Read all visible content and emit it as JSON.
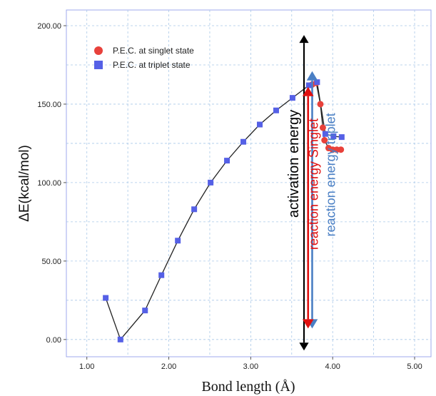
{
  "chart_data": {
    "type": "line",
    "title": "",
    "xlabel": "Bond length (Å)",
    "ylabel": "ΔE(kcal/mol)",
    "xlim": [
      0.75,
      5.2
    ],
    "ylim": [
      -11,
      210
    ],
    "x_ticks": [
      "1.00",
      "2.00",
      "3.00",
      "4.00",
      "5.00"
    ],
    "x_tick_values": [
      1,
      2,
      3,
      4,
      5
    ],
    "y_ticks": [
      "0.00",
      "50.00",
      "100.00",
      "150.00",
      "200.00"
    ],
    "y_tick_values": [
      0,
      50,
      100,
      150,
      200
    ],
    "grid": true,
    "legend_position": "top-left",
    "colors": {
      "singlet": "#e8413b",
      "triplet": "#5560e6",
      "line": "#222222",
      "grid": "#a9c8e8",
      "frame": "#9fa8ec",
      "activation_arrow": "#000000",
      "singlet_arrow": "#e01010",
      "triplet_arrow": "#4a7fc4"
    },
    "series": [
      {
        "name": "P.E.C. at singlet state",
        "marker": "circle",
        "points": [
          [
            3.75,
            162.5
          ],
          [
            3.8,
            163.5
          ],
          [
            3.85,
            150
          ],
          [
            3.88,
            135
          ],
          [
            3.9,
            127
          ],
          [
            3.95,
            122
          ],
          [
            4.0,
            121
          ],
          [
            4.05,
            121
          ],
          [
            4.1,
            121
          ]
        ]
      },
      {
        "name": "P.E.C. at triplet state",
        "marker": "square",
        "points": [
          [
            1.23,
            26.5
          ],
          [
            1.41,
            0
          ],
          [
            1.71,
            18.5
          ],
          [
            1.91,
            41
          ],
          [
            2.11,
            63
          ],
          [
            2.31,
            83
          ],
          [
            2.51,
            100
          ],
          [
            2.71,
            114
          ],
          [
            2.91,
            126
          ],
          [
            3.11,
            137
          ],
          [
            3.31,
            146
          ],
          [
            3.51,
            154
          ],
          [
            3.71,
            162
          ],
          [
            3.81,
            164
          ],
          [
            3.91,
            131
          ],
          [
            4.01,
            129.5
          ],
          [
            4.11,
            129
          ]
        ]
      }
    ],
    "annotations": {
      "activation": {
        "label": "activation energy",
        "x": 3.65,
        "y_from": -7,
        "y_to": 194
      },
      "reaction_singlet": {
        "label": "reaction energy  Singlet",
        "x": 3.7,
        "y_from": 7,
        "y_to": 161
      },
      "reaction_triplet": {
        "label": "reaction energy triplet",
        "x": 3.75,
        "y_from": 7,
        "y_to": 171
      }
    }
  }
}
